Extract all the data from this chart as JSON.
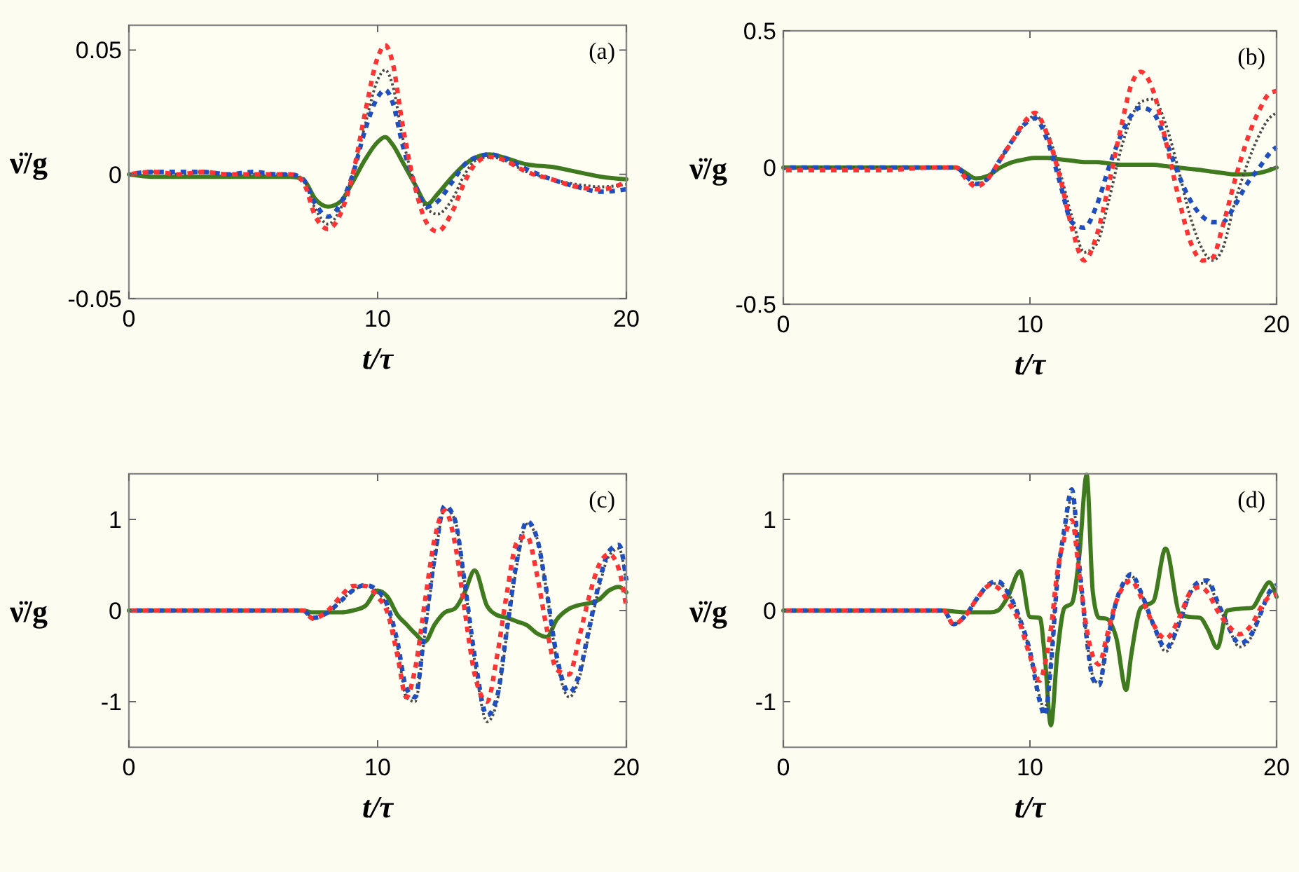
{
  "chart_data": [
    {
      "type": "line",
      "title": "(a)",
      "xlabel": "t/τ",
      "ylabel": "ν̈/g",
      "xlim": [
        0,
        20
      ],
      "xticks": [
        0,
        10,
        20
      ],
      "ylim": [
        -0.05,
        0.06
      ],
      "yticks": [
        -0.05,
        0,
        0.05
      ],
      "x": [
        0,
        1,
        2,
        3,
        4,
        5,
        6,
        6.5,
        7,
        7.5,
        8,
        8.5,
        9,
        9.5,
        10,
        10.3,
        10.6,
        11,
        11.5,
        12,
        12.4,
        13,
        13.5,
        14,
        14.5,
        15,
        16,
        17,
        18,
        19,
        20
      ],
      "series": [
        {
          "color": "#4a4a4a",
          "line_style": "dotted",
          "values": [
            0,
            0.001,
            0,
            0.001,
            0,
            0,
            0,
            0,
            -0.002,
            -0.014,
            -0.02,
            -0.014,
            0,
            0.02,
            0.038,
            0.042,
            0.036,
            0.015,
            -0.004,
            -0.014,
            -0.016,
            -0.01,
            0,
            0.006,
            0.007,
            0.006,
            0.001,
            -0.002,
            -0.004,
            -0.005,
            -0.004
          ]
        },
        {
          "color": "#1f4fbf",
          "line_style": "dashed",
          "values": [
            0,
            0.001,
            0.001,
            0.001,
            0,
            0.001,
            0,
            0,
            -0.002,
            -0.012,
            -0.017,
            -0.012,
            0,
            0.018,
            0.031,
            0.034,
            0.029,
            0.012,
            -0.004,
            -0.013,
            -0.011,
            -0.003,
            0.004,
            0.007,
            0.008,
            0.007,
            0.002,
            -0.002,
            -0.005,
            -0.007,
            -0.006
          ]
        },
        {
          "color": "#ff3333",
          "line_style": "dashed",
          "values": [
            0,
            0.001,
            0,
            0.001,
            0,
            0,
            0,
            0,
            -0.003,
            -0.017,
            -0.022,
            -0.016,
            0,
            0.025,
            0.047,
            0.052,
            0.045,
            0.02,
            -0.005,
            -0.02,
            -0.023,
            -0.015,
            -0.003,
            0.005,
            0.007,
            0.006,
            0.001,
            -0.002,
            -0.005,
            -0.006,
            -0.003
          ]
        },
        {
          "color": "#3f7a1f",
          "line_style": "solid",
          "values": [
            0,
            -0.001,
            -0.001,
            -0.001,
            -0.001,
            -0.001,
            -0.001,
            -0.001,
            -0.002,
            -0.01,
            -0.013,
            -0.011,
            -0.003,
            0.006,
            0.013,
            0.015,
            0.012,
            0.005,
            -0.004,
            -0.012,
            -0.008,
            -0.001,
            0.004,
            0.007,
            0.008,
            0.007,
            0.004,
            0.003,
            0.001,
            -0.001,
            -0.002
          ]
        }
      ]
    },
    {
      "type": "line",
      "title": "(b)",
      "xlabel": "t/τ",
      "ylabel": "ν̈/g",
      "xlim": [
        0,
        20
      ],
      "xticks": [
        0,
        10,
        20
      ],
      "ylim": [
        -0.5,
        0.5
      ],
      "yticks": [
        -0.5,
        0,
        0.5
      ],
      "x": [
        0,
        2,
        4,
        6,
        7,
        7.4,
        7.8,
        8.3,
        8.8,
        9.3,
        9.8,
        10.2,
        10.7,
        11.2,
        11.7,
        12.2,
        12.7,
        13.2,
        13.7,
        14.1,
        14.5,
        15,
        15.5,
        16,
        16.5,
        17,
        17.4,
        17.8,
        18.3,
        18.8,
        19.3,
        19.7,
        20
      ],
      "series": [
        {
          "color": "#4a4a4a",
          "line_style": "dotted",
          "values": [
            -0.005,
            0,
            0,
            0,
            0,
            -0.03,
            -0.06,
            -0.04,
            0.03,
            0.1,
            0.16,
            0.19,
            0.13,
            -0.01,
            -0.18,
            -0.31,
            -0.28,
            -0.12,
            0.07,
            0.18,
            0.24,
            0.25,
            0.16,
            0,
            -0.18,
            -0.3,
            -0.34,
            -0.3,
            -0.13,
            0.01,
            0.12,
            0.18,
            0.2
          ]
        },
        {
          "color": "#1f4fbf",
          "line_style": "dashed",
          "values": [
            0,
            0,
            0,
            0,
            0,
            -0.03,
            -0.06,
            -0.04,
            0.03,
            0.1,
            0.16,
            0.18,
            0.1,
            -0.05,
            -0.2,
            -0.22,
            -0.14,
            0,
            0.12,
            0.19,
            0.22,
            0.2,
            0.1,
            -0.02,
            -0.12,
            -0.18,
            -0.2,
            -0.2,
            -0.14,
            -0.06,
            0,
            0.05,
            0.075
          ]
        },
        {
          "color": "#ff3333",
          "line_style": "dashed",
          "values": [
            -0.01,
            -0.01,
            -0.01,
            0,
            0,
            -0.04,
            -0.07,
            -0.04,
            0.03,
            0.1,
            0.17,
            0.2,
            0.12,
            -0.03,
            -0.22,
            -0.34,
            -0.25,
            -0.06,
            0.15,
            0.3,
            0.35,
            0.28,
            0.1,
            -0.1,
            -0.27,
            -0.34,
            -0.33,
            -0.22,
            -0.05,
            0.1,
            0.21,
            0.27,
            0.28
          ]
        },
        {
          "color": "#3f7a1f",
          "line_style": "solid",
          "values": [
            0,
            0,
            0,
            0,
            0,
            -0.02,
            -0.04,
            -0.03,
            0,
            0.02,
            0.03,
            0.035,
            0.035,
            0.03,
            0.025,
            0.02,
            0.02,
            0.015,
            0.01,
            0.01,
            0.01,
            0.01,
            0.005,
            0,
            -0.005,
            -0.01,
            -0.015,
            -0.02,
            -0.025,
            -0.025,
            -0.02,
            -0.01,
            0
          ]
        }
      ]
    },
    {
      "type": "line",
      "title": "(c)",
      "xlabel": "t/τ",
      "ylabel": "ν̈/g",
      "xlim": [
        0,
        20
      ],
      "xticks": [
        0,
        10,
        20
      ],
      "ylim": [
        -1.5,
        1.5
      ],
      "yticks": [
        -1,
        0,
        1
      ],
      "x": [
        0,
        2,
        4,
        6,
        7,
        7.4,
        8,
        8.5,
        9,
        9.5,
        10,
        10.4,
        10.8,
        11.15,
        11.5,
        11.9,
        12.3,
        12.7,
        13.1,
        13.5,
        13.9,
        14.4,
        14.8,
        15.2,
        15.6,
        16,
        16.4,
        16.8,
        17.2,
        17.7,
        18.1,
        18.5,
        18.9,
        19.3,
        19.7,
        20
      ],
      "series": [
        {
          "color": "#4a4a4a",
          "line_style": "dotted",
          "values": [
            0,
            0,
            0,
            0,
            0,
            -0.08,
            -0.02,
            0.1,
            0.22,
            0.27,
            0.2,
            0.03,
            -0.4,
            -0.95,
            -1,
            -0.25,
            0.55,
            1.12,
            1,
            0.3,
            -0.55,
            -1.22,
            -1,
            -0.25,
            0.5,
            0.95,
            0.8,
            0.2,
            -0.55,
            -0.95,
            -0.75,
            -0.25,
            0.25,
            0.6,
            0.68,
            0.3
          ]
        },
        {
          "color": "#1f4fbf",
          "line_style": "dashed",
          "values": [
            0,
            0,
            0,
            0,
            0,
            -0.08,
            -0.02,
            0.1,
            0.22,
            0.28,
            0.22,
            0.05,
            -0.35,
            -0.85,
            -0.95,
            -0.2,
            0.6,
            1.15,
            1,
            0.3,
            -0.5,
            -1.15,
            -0.95,
            -0.2,
            0.55,
            0.98,
            0.8,
            0.2,
            -0.5,
            -0.9,
            -0.7,
            -0.2,
            0.3,
            0.65,
            0.72,
            0.33
          ]
        },
        {
          "color": "#ff3333",
          "line_style": "dashed",
          "values": [
            0,
            0,
            0,
            0,
            0,
            -0.09,
            0,
            0.15,
            0.27,
            0.27,
            0.15,
            -0.03,
            -0.5,
            -0.95,
            -0.65,
            0.1,
            0.8,
            1.1,
            0.75,
            0,
            -0.7,
            -1,
            -0.5,
            0.2,
            0.75,
            0.82,
            0.4,
            -0.2,
            -0.65,
            -0.7,
            -0.3,
            0.15,
            0.5,
            0.62,
            0.45,
            0.03
          ]
        },
        {
          "color": "#3f7a1f",
          "line_style": "solid",
          "values": [
            0,
            0,
            0,
            0,
            0,
            -0.02,
            -0.02,
            -0.02,
            0,
            0.05,
            0.22,
            0.15,
            -0.05,
            -0.15,
            -0.25,
            -0.34,
            -0.15,
            -0.02,
            0.02,
            0.2,
            0.44,
            0.05,
            -0.05,
            -0.08,
            -0.12,
            -0.16,
            -0.25,
            -0.29,
            -0.1,
            0.02,
            0.06,
            0.08,
            0.12,
            0.22,
            0.26,
            0.2
          ]
        }
      ]
    },
    {
      "type": "line",
      "title": "(d)",
      "xlabel": "t/τ",
      "ylabel": "ν̈/g",
      "xlim": [
        0,
        20
      ],
      "xticks": [
        0,
        10,
        20
      ],
      "ylim": [
        -1.5,
        1.5
      ],
      "yticks": [
        -1,
        0,
        1
      ],
      "x": [
        0,
        2,
        4,
        6,
        6.5,
        6.9,
        7.4,
        7.9,
        8.4,
        8.7,
        9.1,
        9.6,
        10,
        10.4,
        10.6,
        10.85,
        11.1,
        11.4,
        11.7,
        12,
        12.3,
        12.55,
        12.8,
        13.1,
        13.5,
        13.9,
        14.1,
        14.5,
        15,
        15.5,
        16.1,
        16.5,
        16.9,
        17.2,
        17.6,
        18,
        18.5,
        19,
        19.4,
        19.7,
        20
      ],
      "series": [
        {
          "color": "#4a4a4a",
          "line_style": "dotted",
          "values": [
            0,
            0,
            0,
            0,
            0,
            -0.15,
            -0.05,
            0.14,
            0.28,
            0.3,
            0.2,
            -0.1,
            -0.45,
            -0.95,
            -1.1,
            -0.55,
            0.3,
            0.85,
            1.25,
            0.5,
            -0.3,
            -0.72,
            -0.8,
            -0.4,
            0.08,
            0.33,
            0.38,
            0.2,
            -0.15,
            -0.45,
            -0.12,
            0.18,
            0.3,
            0.3,
            0.08,
            -0.15,
            -0.4,
            -0.28,
            0,
            0.18,
            0.25
          ]
        },
        {
          "color": "#1f4fbf",
          "line_style": "dashed",
          "values": [
            0,
            0,
            0,
            0,
            0,
            -0.15,
            -0.05,
            0.15,
            0.3,
            0.32,
            0.2,
            -0.1,
            -0.45,
            -1,
            -1.15,
            -0.6,
            0.3,
            0.9,
            1.33,
            0.5,
            -0.3,
            -0.75,
            -0.82,
            -0.4,
            0.1,
            0.35,
            0.4,
            0.2,
            -0.15,
            -0.41,
            -0.1,
            0.2,
            0.32,
            0.33,
            0.1,
            -0.15,
            -0.36,
            -0.25,
            0,
            0.2,
            0.28
          ]
        },
        {
          "color": "#ff3333",
          "line_style": "dashed",
          "values": [
            0,
            0,
            0,
            0,
            0,
            -0.15,
            -0.05,
            0.15,
            0.28,
            0.25,
            0.1,
            -0.15,
            -0.5,
            -0.77,
            -0.6,
            -0.2,
            0.4,
            0.8,
            0.99,
            0.4,
            -0.2,
            -0.5,
            -0.59,
            -0.3,
            0.1,
            0.3,
            0.33,
            0.15,
            -0.15,
            -0.31,
            -0.05,
            0.2,
            0.26,
            0.2,
            0,
            -0.15,
            -0.26,
            -0.15,
            0.05,
            0.15,
            0.18
          ]
        },
        {
          "color": "#3f7a1f",
          "line_style": "solid",
          "values": [
            0,
            0,
            0,
            0,
            0,
            -0.01,
            -0.02,
            -0.02,
            -0.02,
            0,
            0.15,
            0.43,
            -0.07,
            -0.08,
            -0.5,
            -1.26,
            -0.5,
            0.03,
            0.08,
            0.6,
            1.49,
            0.2,
            -0.08,
            -0.09,
            -0.3,
            -0.87,
            -0.5,
            0.03,
            0.1,
            0.68,
            -0.05,
            -0.07,
            -0.08,
            -0.2,
            -0.41,
            0,
            0.02,
            0.03,
            0.2,
            0.31,
            0.15
          ]
        }
      ]
    }
  ]
}
